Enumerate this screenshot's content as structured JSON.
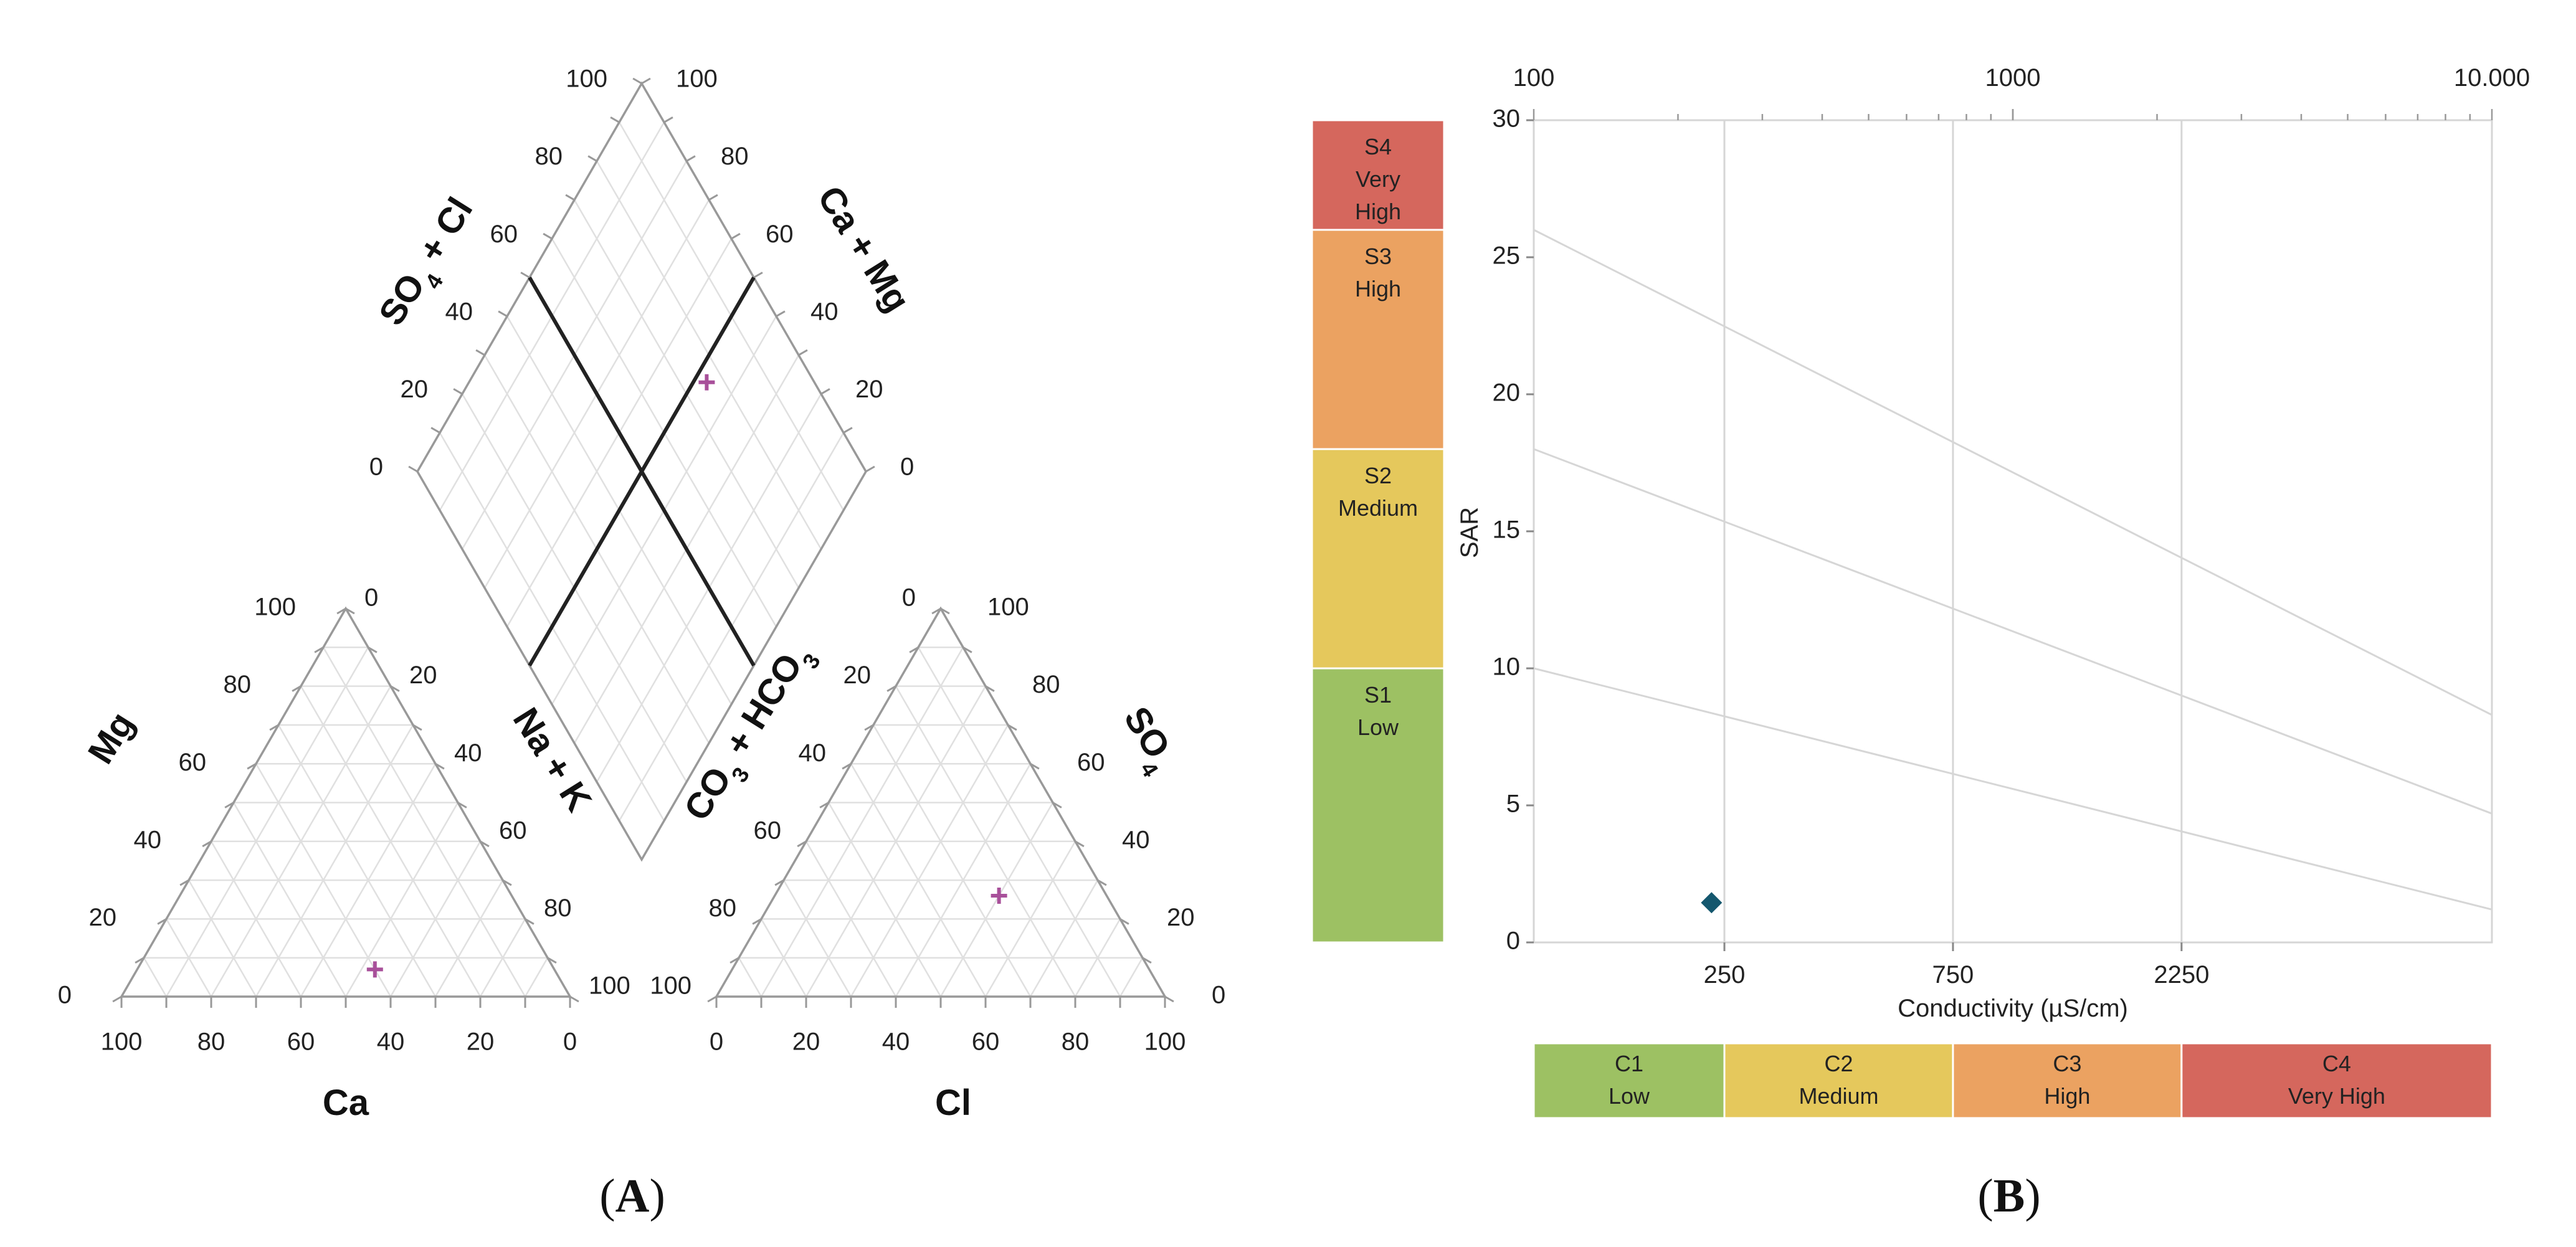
{
  "panels": {
    "A": {
      "label": "A"
    },
    "B": {
      "label": "B"
    }
  },
  "chart_data": [
    {
      "type": "scatter",
      "name": "Piper diagram",
      "panel": "A",
      "ticks": [
        "0",
        "20",
        "40",
        "60",
        "80",
        "100"
      ],
      "cation_triangle": {
        "labels": {
          "left": "Mg",
          "bottom": "Ca",
          "right": "Na + K"
        },
        "samples": [
          {
            "Ca": 40,
            "Mg": 7,
            "NaK": 53
          }
        ]
      },
      "anion_triangle": {
        "labels": {
          "left": "CO3 + HCO3",
          "bottom": "Cl",
          "right": "SO4"
        },
        "samples": [
          {
            "Cl": 50,
            "SO4": 26,
            "CO3HCO3": 24
          }
        ]
      },
      "diamond": {
        "labels": {
          "upper_left": "SO4 + Cl",
          "upper_right": "Ca + Mg"
        },
        "samples": [
          {
            "SO4Cl": 76,
            "CaMg": 47
          }
        ]
      },
      "marker_color": "#a8509a"
    },
    {
      "type": "scatter",
      "name": "USSL salinity/alkalinity hazard diagram",
      "panel": "B",
      "xlabel": "Conductivity (µS/cm)",
      "ylabel": "SAR",
      "x_scale": "log",
      "xlim": [
        100,
        10000
      ],
      "ylim": [
        0,
        30
      ],
      "top_axis_ticks": [
        "100",
        "1000",
        "10.000"
      ],
      "x_class_ticks": [
        "250",
        "750",
        "2250"
      ],
      "y_ticks": [
        "0",
        "5",
        "10",
        "15",
        "20",
        "25",
        "30"
      ],
      "hazard_lines": [
        {
          "from": [
            100,
            26
          ],
          "to": [
            10000,
            8.3
          ]
        },
        {
          "from": [
            100,
            18
          ],
          "to": [
            10000,
            4.7
          ]
        },
        {
          "from": [
            100,
            10
          ],
          "to": [
            10000,
            1.2
          ]
        }
      ],
      "points": [
        {
          "conductivity": 235,
          "SAR": 1.45
        }
      ],
      "point_color": "#14576e",
      "sodium_classes": [
        {
          "code": "S4",
          "name": "Very High",
          "range": [
            26,
            30
          ],
          "color": "#d5675d"
        },
        {
          "code": "S3",
          "name": "High",
          "range": [
            18,
            26
          ],
          "color": "#eba261"
        },
        {
          "code": "S2",
          "name": "Medium",
          "range": [
            10,
            18
          ],
          "color": "#e5c85c"
        },
        {
          "code": "S1",
          "name": "Low",
          "range": [
            0,
            10
          ],
          "color": "#9dc163"
        }
      ],
      "salinity_classes": [
        {
          "code": "C1",
          "name": "Low",
          "range": [
            100,
            250
          ],
          "color": "#9dc163"
        },
        {
          "code": "C2",
          "name": "Medium",
          "range": [
            250,
            750
          ],
          "color": "#e5c85c"
        },
        {
          "code": "C3",
          "name": "High",
          "range": [
            750,
            2250
          ],
          "color": "#eba261"
        },
        {
          "code": "C4",
          "name": "Very High",
          "range": [
            2250,
            10000
          ],
          "color": "#d5675d"
        }
      ]
    }
  ]
}
